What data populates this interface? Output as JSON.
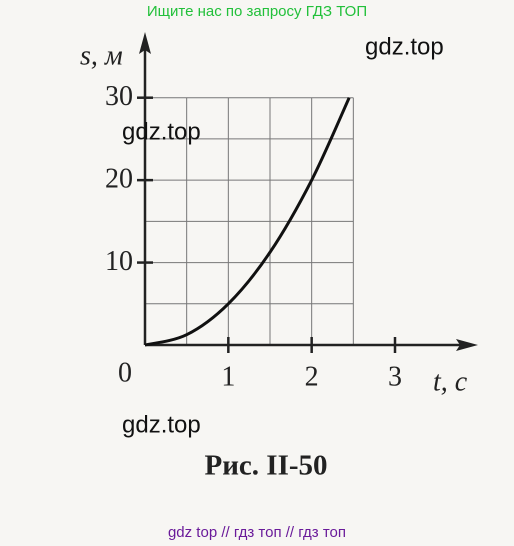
{
  "header": {
    "search_hint": "Ищите нас по запросу ГДЗ ТОП"
  },
  "watermarks": [
    "gdz.top",
    "gdz.top",
    "gdz.top"
  ],
  "footer": {
    "links": "gdz top  //  гдз топ  //  гдз топ"
  },
  "chart_data": {
    "type": "line",
    "caption": "Рис. II-50",
    "x_label": "t, с",
    "y_label": "s, м",
    "x": [
      0,
      0.5,
      1,
      1.5,
      2,
      2.45
    ],
    "series": [
      {
        "color": "#111111",
        "values": [
          0,
          1.25,
          5,
          11.25,
          20,
          30
        ]
      }
    ],
    "xlim": [
      0,
      3.9
    ],
    "ylim": [
      0,
      37
    ],
    "xticks": [
      0,
      1,
      2,
      3
    ],
    "yticks": [
      10,
      20,
      30
    ],
    "x_grid": [
      0.5,
      1,
      1.5,
      2,
      2.5
    ],
    "y_grid": [
      5,
      10,
      15,
      20,
      25,
      30
    ],
    "grid": true
  }
}
